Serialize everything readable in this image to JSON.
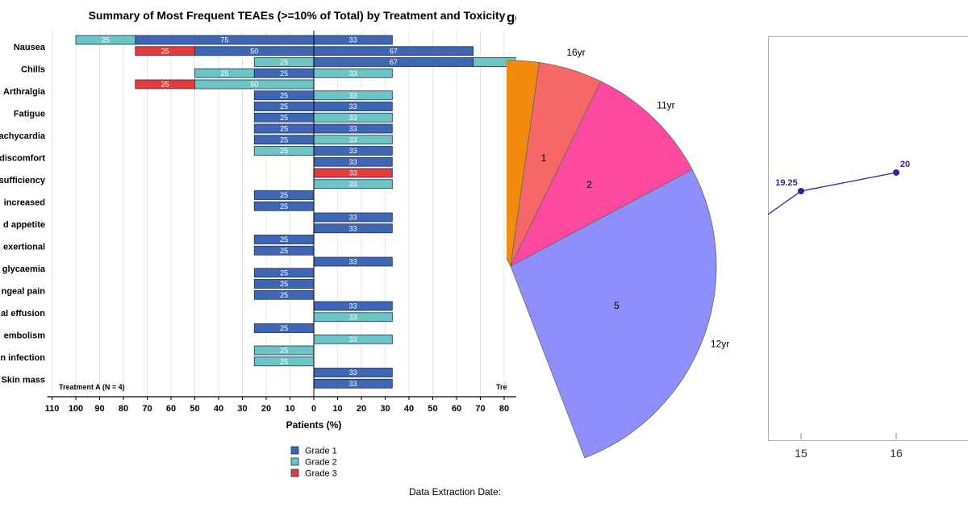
{
  "chart_data": [
    {
      "type": "bar",
      "title": "Summary of Most Frequent TEAEs (>=10% of Total) by Treatment and Toxicity",
      "title_overlap_fragment": "ge",
      "xlabel": "Patients (%)",
      "x_ticks": [
        "110",
        "100",
        "90",
        "80",
        "70",
        "60",
        "50",
        "40",
        "30",
        "20",
        "10",
        "0",
        "10",
        "20",
        "30",
        "40",
        "50",
        "60",
        "70",
        "80"
      ],
      "xlim_left": [
        110,
        0
      ],
      "xlim_right": [
        0,
        80
      ],
      "left_group_label": "Treatment A (N = 4)",
      "right_group_label": "Tre",
      "footer": "Data Extraction Date:",
      "grade_colors": {
        "Grade 1": "#3f66b5",
        "Grade 2": "#6cc5c5",
        "Grade 3": "#e53b3b"
      },
      "legend": [
        {
          "name": "Grade 1",
          "color": "#3f66b5"
        },
        {
          "name": "Grade 2",
          "color": "#6cc5c5"
        },
        {
          "name": "Grade 3",
          "color": "#e53b3b"
        }
      ],
      "category_labels": [
        {
          "row": 1,
          "text": "Nausea"
        },
        {
          "row": 3,
          "text": "Chills"
        },
        {
          "row": 5,
          "text": "Arthralgia"
        },
        {
          "row": 7,
          "text": "Fatigue"
        },
        {
          "row": 9,
          "text": "achycardia"
        },
        {
          "row": 11,
          "text": "discomfort"
        },
        {
          "row": 13,
          "text": "sufficiency"
        },
        {
          "row": 15,
          "text": "increased"
        },
        {
          "row": 17,
          "text": "d appetite"
        },
        {
          "row": 19,
          "text": "exertional"
        },
        {
          "row": 21,
          "text": "glycaemia"
        },
        {
          "row": 23,
          "text": "ngeal pain"
        },
        {
          "row": 25,
          "text": "al effusion"
        },
        {
          "row": 27,
          "text": "embolism"
        },
        {
          "row": 29,
          "text": "n infection"
        },
        {
          "row": 31,
          "text": "Skin mass"
        }
      ],
      "rows": [
        {
          "left": [
            {
              "grade": "Grade 1",
              "value": 75
            },
            {
              "grade": "Grade 2",
              "value": 25
            }
          ],
          "right": [
            {
              "grade": "Grade 1",
              "value": 33
            }
          ]
        },
        {
          "left": [
            {
              "grade": "Grade 1",
              "value": 50
            },
            {
              "grade": "Grade 3",
              "value": 25
            }
          ],
          "right": [
            {
              "grade": "Grade 1",
              "value": 67
            }
          ]
        },
        {
          "left": [
            {
              "grade": "Grade 2",
              "value": 25
            }
          ],
          "right": [
            {
              "grade": "Grade 1",
              "value": 67
            },
            {
              "grade": "Grade 2",
              "value": 33,
              "label": ""
            }
          ]
        },
        {
          "left": [
            {
              "grade": "Grade 1",
              "value": 25
            },
            {
              "grade": "Grade 2",
              "value": 25
            }
          ],
          "right": [
            {
              "grade": "Grade 2",
              "value": 33
            }
          ]
        },
        {
          "left": [
            {
              "grade": "Grade 2",
              "value": 50
            },
            {
              "grade": "Grade 3",
              "value": 25
            }
          ],
          "right": []
        },
        {
          "left": [
            {
              "grade": "Grade 1",
              "value": 25
            }
          ],
          "right": [
            {
              "grade": "Grade 2",
              "value": 33
            }
          ]
        },
        {
          "left": [
            {
              "grade": "Grade 1",
              "value": 25
            }
          ],
          "right": [
            {
              "grade": "Grade 1",
              "value": 33
            }
          ]
        },
        {
          "left": [
            {
              "grade": "Grade 1",
              "value": 25
            }
          ],
          "right": [
            {
              "grade": "Grade 2",
              "value": 33
            }
          ]
        },
        {
          "left": [
            {
              "grade": "Grade 1",
              "value": 25
            }
          ],
          "right": [
            {
              "grade": "Grade 1",
              "value": 33
            }
          ]
        },
        {
          "left": [
            {
              "grade": "Grade 1",
              "value": 25
            }
          ],
          "right": [
            {
              "grade": "Grade 2",
              "value": 33
            }
          ]
        },
        {
          "left": [
            {
              "grade": "Grade 2",
              "value": 25
            }
          ],
          "right": [
            {
              "grade": "Grade 1",
              "value": 33
            }
          ]
        },
        {
          "left": [],
          "right": [
            {
              "grade": "Grade 1",
              "value": 33
            }
          ]
        },
        {
          "left": [],
          "right": [
            {
              "grade": "Grade 3",
              "value": 33
            }
          ]
        },
        {
          "left": [],
          "right": [
            {
              "grade": "Grade 2",
              "value": 33
            }
          ]
        },
        {
          "left": [
            {
              "grade": "Grade 1",
              "value": 25
            }
          ],
          "right": []
        },
        {
          "left": [
            {
              "grade": "Grade 1",
              "value": 25
            }
          ],
          "right": []
        },
        {
          "left": [],
          "right": [
            {
              "grade": "Grade 1",
              "value": 33
            }
          ]
        },
        {
          "left": [],
          "right": [
            {
              "grade": "Grade 1",
              "value": 33
            }
          ]
        },
        {
          "left": [
            {
              "grade": "Grade 1",
              "value": 25
            }
          ],
          "right": []
        },
        {
          "left": [
            {
              "grade": "Grade 1",
              "value": 25
            }
          ],
          "right": []
        },
        {
          "left": [],
          "right": [
            {
              "grade": "Grade 1",
              "value": 33
            }
          ]
        },
        {
          "left": [
            {
              "grade": "Grade 1",
              "value": 25
            }
          ],
          "right": []
        },
        {
          "left": [
            {
              "grade": "Grade 1",
              "value": 25
            }
          ],
          "right": []
        },
        {
          "left": [
            {
              "grade": "Grade 1",
              "value": 25
            }
          ],
          "right": []
        },
        {
          "left": [],
          "right": [
            {
              "grade": "Grade 1",
              "value": 33
            }
          ]
        },
        {
          "left": [],
          "right": [
            {
              "grade": "Grade 2",
              "value": 33
            }
          ]
        },
        {
          "left": [
            {
              "grade": "Grade 1",
              "value": 25
            }
          ],
          "right": []
        },
        {
          "left": [],
          "right": [
            {
              "grade": "Grade 2",
              "value": 33
            }
          ]
        },
        {
          "left": [
            {
              "grade": "Grade 2",
              "value": 25
            }
          ],
          "right": []
        },
        {
          "left": [
            {
              "grade": "Grade 2",
              "value": 25
            }
          ],
          "right": []
        },
        {
          "left": [],
          "right": [
            {
              "grade": "Grade 1",
              "value": 33
            }
          ]
        },
        {
          "left": [],
          "right": [
            {
              "grade": "Grade 1",
              "value": 33
            }
          ]
        }
      ]
    },
    {
      "type": "pie",
      "slices": [
        {
          "value": 1,
          "outer_label": "16yr",
          "color": "#f76767"
        },
        {
          "value": 2,
          "outer_label": "11yr",
          "color": "#fb4aa0"
        },
        {
          "value": 5,
          "outer_label": "12yr",
          "color": "#8f8ffc"
        },
        {
          "value": 2,
          "outer_label": "",
          "color": "#f28a0e",
          "visible_value_label": false
        }
      ]
    },
    {
      "type": "line",
      "x_ticks": [
        "15",
        "16"
      ],
      "points": [
        {
          "x": 15,
          "y": 19.25,
          "label": "19.25"
        },
        {
          "x": 16,
          "y": 20,
          "label": "20"
        }
      ],
      "line_color": "#3a1ca1"
    }
  ]
}
